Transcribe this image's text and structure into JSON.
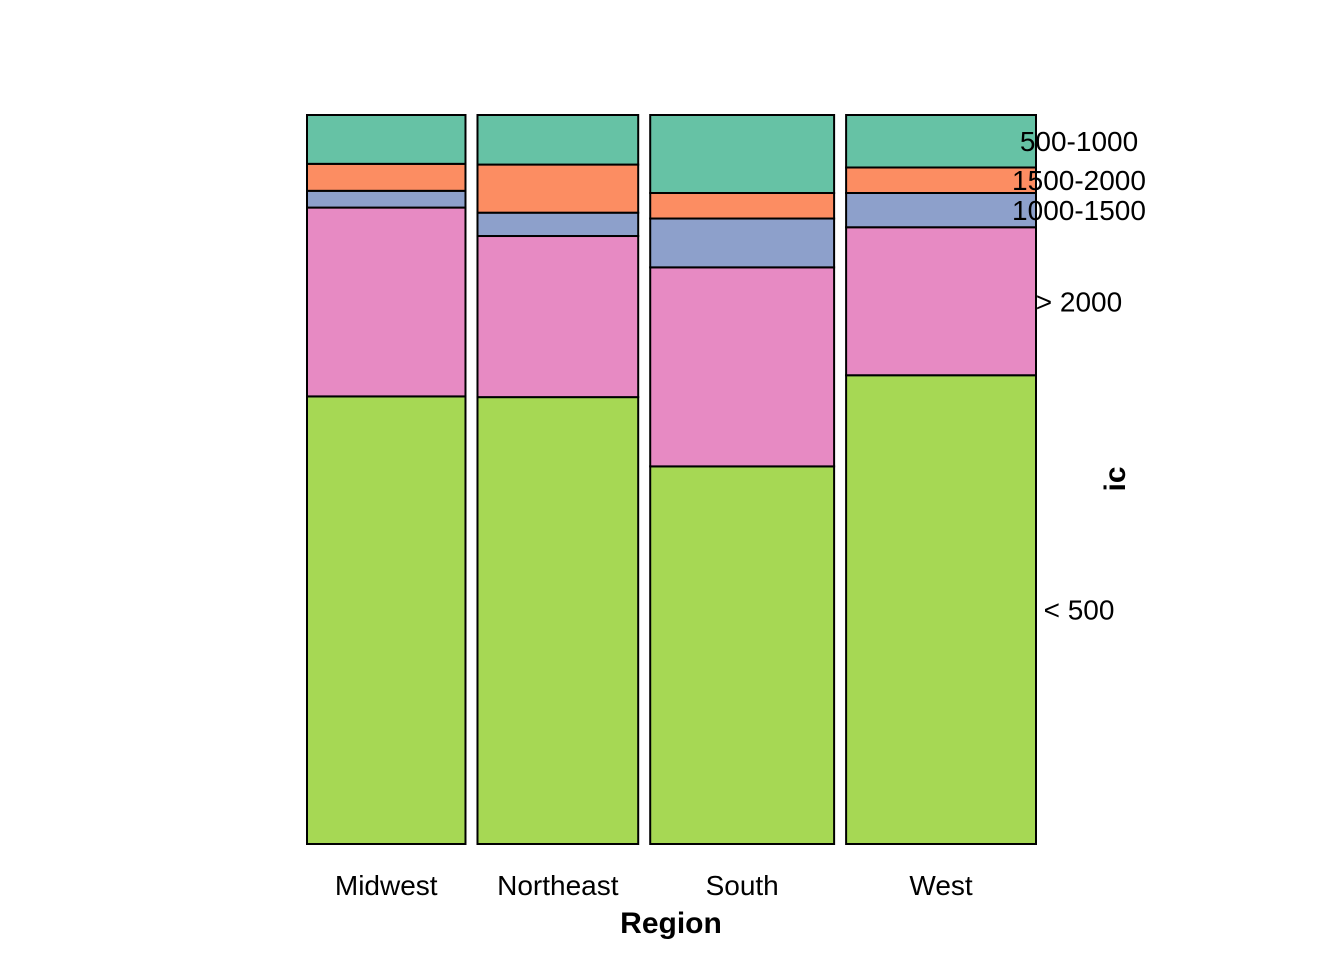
{
  "chart_data": {
    "type": "bar",
    "subtype": "spineplot",
    "xlabel": "Region",
    "ylabel": "ic",
    "categories": [
      "Midwest",
      "Northeast",
      "South",
      "West"
    ],
    "category_widths": [
      0.212,
      0.215,
      0.246,
      0.254
    ],
    "series": [
      {
        "name": "< 500",
        "color": "#A6D854",
        "values": [
          0.614,
          0.613,
          0.518,
          0.643
        ]
      },
      {
        "name": "> 2000",
        "color": "#E78AC3",
        "values": [
          0.259,
          0.221,
          0.273,
          0.203
        ]
      },
      {
        "name": "1000-1500",
        "color": "#8DA0CB",
        "values": [
          0.023,
          0.032,
          0.067,
          0.047
        ]
      },
      {
        "name": "1500-2000",
        "color": "#FC8D62",
        "values": [
          0.037,
          0.066,
          0.035,
          0.035
        ]
      },
      {
        "name": "500-1000",
        "color": "#66C2A5",
        "values": [
          0.067,
          0.068,
          0.107,
          0.072
        ]
      }
    ],
    "legend": "right"
  }
}
